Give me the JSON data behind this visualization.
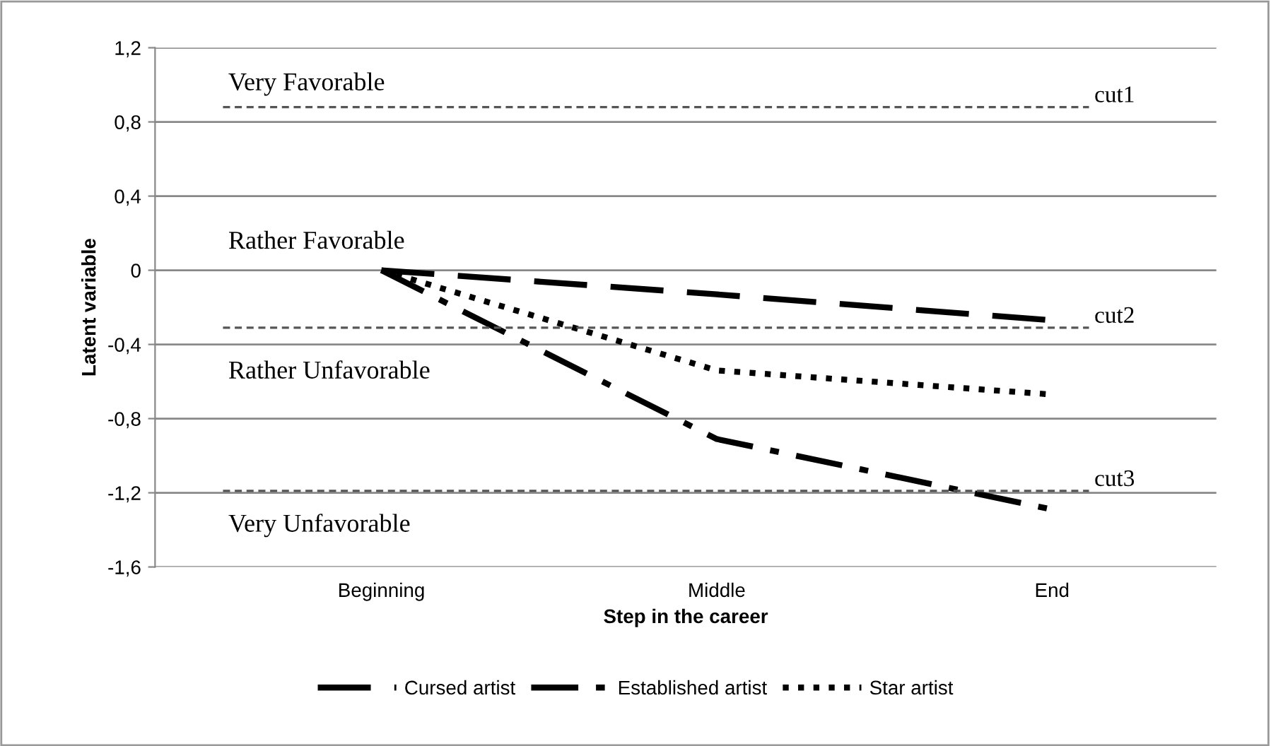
{
  "chart_data": {
    "type": "line",
    "xlabel": "Step in the career",
    "ylabel": "Latent variable",
    "categories": [
      "Beginning",
      "Middle",
      "End"
    ],
    "series": [
      {
        "name": "Cursed artist",
        "color": "#000000",
        "line_style": "dashed",
        "values": [
          0,
          -0.13,
          -0.27
        ]
      },
      {
        "name": "Established artist",
        "color": "#000000",
        "line_style": "dashdot",
        "values": [
          0,
          -0.91,
          -1.29
        ]
      },
      {
        "name": "Star artist",
        "color": "#000000",
        "line_style": "dotted",
        "values": [
          0,
          -0.54,
          -0.67
        ]
      }
    ],
    "ylim": [
      -1.6,
      1.2
    ],
    "yticks": [
      {
        "value": -1.6,
        "label": "-1,6"
      },
      {
        "value": -1.2,
        "label": "-1,2"
      },
      {
        "value": -0.8,
        "label": "-0,8"
      },
      {
        "value": -0.4,
        "label": "-0,4"
      },
      0,
      {
        "value": 0.4,
        "label": "0,4"
      },
      {
        "value": 0.8,
        "label": "0,8"
      },
      {
        "value": 1.2,
        "label": "1,2"
      }
    ],
    "grid": "y",
    "legend": "bottom",
    "marker": "none",
    "ref_lines": [
      {
        "axis": "y",
        "value": 0.88,
        "label": "cut1",
        "color": "#555555",
        "line_style": "dashed"
      },
      {
        "axis": "y",
        "value": -0.31,
        "label": "cut2",
        "color": "#555555",
        "line_style": "dashed"
      },
      {
        "axis": "y",
        "value": -1.19,
        "label": "cut3",
        "color": "#555555",
        "line_style": "dashed"
      }
    ],
    "annotations": [
      "Very Favorable",
      "Rather Favorable",
      "Rather Unfavorable",
      "Very Unfavorable"
    ]
  }
}
